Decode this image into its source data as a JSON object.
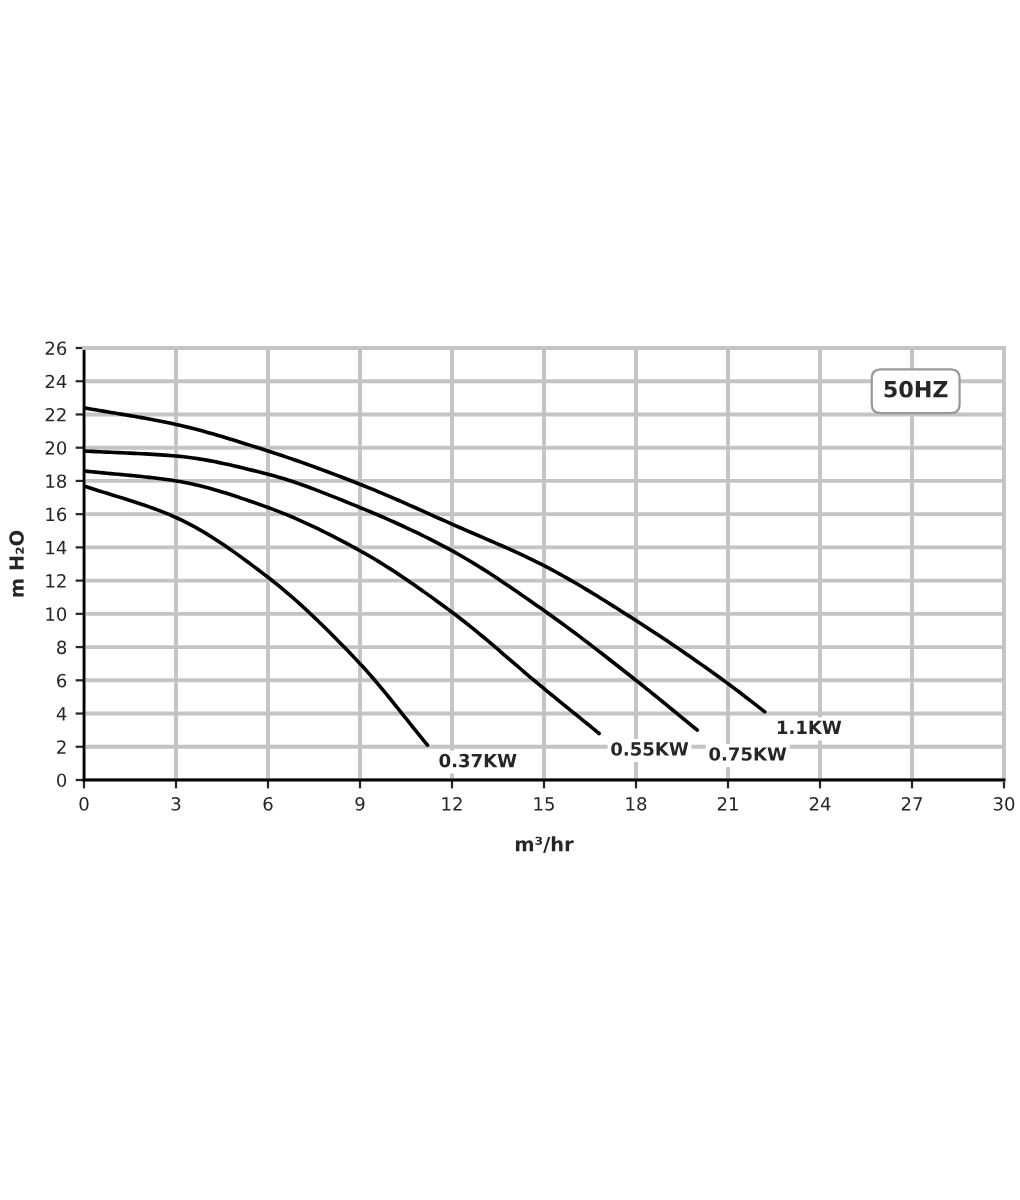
{
  "chart_data": {
    "type": "line",
    "xlabel": "m³/hr",
    "ylabel": "m H₂O",
    "annotations": [
      "50HZ"
    ],
    "xlim": [
      0,
      30
    ],
    "ylim": [
      0,
      26
    ],
    "xticks": [
      0,
      3,
      6,
      9,
      12,
      15,
      18,
      21,
      24,
      27,
      30
    ],
    "yticks": [
      0,
      2,
      4,
      6,
      8,
      10,
      12,
      14,
      16,
      18,
      20,
      22,
      24,
      26
    ],
    "grid": true,
    "series": [
      {
        "name": "0.37KW",
        "color": "#000000",
        "x": [
          0,
          3,
          6,
          9,
          11.2
        ],
        "values": [
          17.7,
          15.8,
          12.2,
          7.0,
          2.1
        ]
      },
      {
        "name": "0.55KW",
        "color": "#000000",
        "x": [
          0,
          3,
          6,
          9,
          12,
          15,
          16.8
        ],
        "values": [
          18.6,
          18.0,
          16.4,
          13.8,
          10.1,
          5.5,
          2.8
        ]
      },
      {
        "name": "0.75KW",
        "color": "#000000",
        "x": [
          0,
          3,
          6,
          9,
          12,
          15,
          18,
          20
        ],
        "values": [
          19.8,
          19.5,
          18.4,
          16.4,
          13.8,
          10.2,
          6.0,
          3.0
        ]
      },
      {
        "name": "1.1KW",
        "color": "#000000",
        "x": [
          0,
          3,
          6,
          9,
          12,
          15,
          18,
          21,
          22.2
        ],
        "values": [
          22.4,
          21.4,
          19.8,
          17.8,
          15.4,
          12.9,
          9.6,
          5.8,
          4.1
        ]
      }
    ]
  }
}
